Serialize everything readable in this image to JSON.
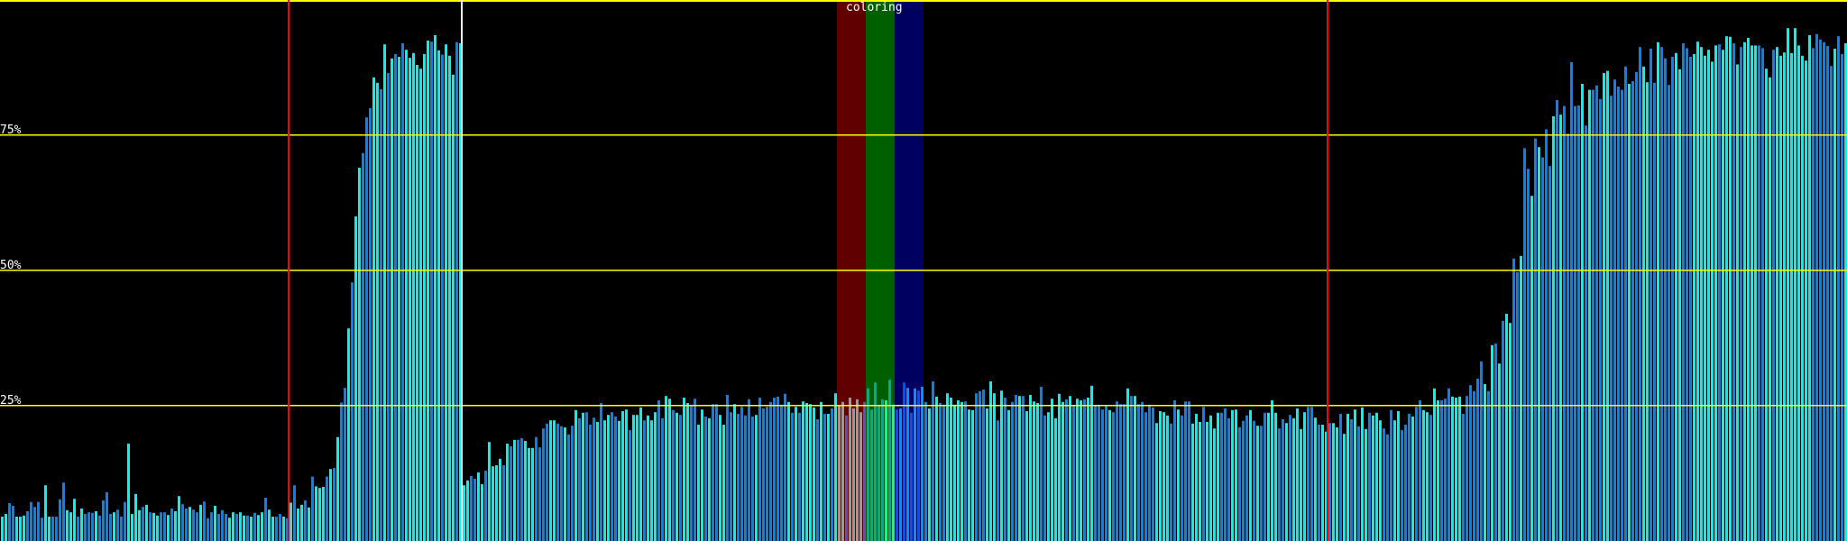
{
  "chart_data": {
    "type": "bar",
    "ylim": [
      0,
      100
    ],
    "y_ticks": [
      {
        "value": 25,
        "label": "25%"
      },
      {
        "value": 50,
        "label": "50%"
      },
      {
        "value": 75,
        "label": "75%"
      }
    ],
    "grid": true,
    "colors": {
      "background": "#000000",
      "gridline": "#ffff00",
      "bar_primary": "#00f4ec",
      "bar_secondary": "#0880f0",
      "marker_red": "#ff0000",
      "marker_white": "#ffffff",
      "band_red": "#600000",
      "band_green": "#006000",
      "band_blue": "#000060"
    },
    "markers": [
      {
        "bar_index": 80,
        "color": "red"
      },
      {
        "bar_index": 128,
        "color": "white"
      },
      {
        "bar_index": 368,
        "color": "red"
      }
    ],
    "band": {
      "label": "coloring",
      "segments": [
        {
          "color": "red",
          "start_bar": 232,
          "end_bar": 240
        },
        {
          "color": "green",
          "start_bar": 240,
          "end_bar": 248
        },
        {
          "color": "blue",
          "start_bar": 248,
          "end_bar": 256
        }
      ]
    },
    "values": [
      4.5,
      5,
      7,
      6.5,
      4.5,
      4.5,
      4.7,
      5.5,
      7.2,
      6.3,
      7.2,
      4.3,
      10.3,
      4.5,
      4.5,
      4.5,
      7.7,
      10.8,
      5.7,
      5.3,
      7.8,
      4.5,
      6,
      5,
      5.3,
      5.2,
      5.5,
      4.7,
      7.5,
      9,
      5,
      5.3,
      5.8,
      4.5,
      7.2,
      18,
      5,
      8.7,
      5.7,
      6.3,
      6.7,
      5.3,
      5.2,
      4.7,
      5.3,
      5.3,
      4.8,
      6,
      5.5,
      8.3,
      6.8,
      6,
      6.3,
      5.8,
      5.3,
      6.7,
      7.3,
      4.2,
      5.3,
      6.5,
      5,
      5.7,
      5,
      4.3,
      5.3,
      5,
      5.3,
      4.7,
      4.7,
      4.5,
      5.2,
      4.8,
      5.3,
      8,
      5.8,
      4.5,
      4.5,
      5,
      4.5,
      4.2,
      7.1,
      10.3,
      6,
      6.7,
      7.5,
      6.2,
      11.9,
      10.1,
      9.8,
      10,
      11.9,
      13.3,
      13.5,
      19.2,
      25.6,
      28.3,
      39.3,
      47.8,
      60,
      69,
      71.7,
      78.3,
      80,
      85.7,
      84.7,
      83.5,
      91.8,
      86.5,
      89.2,
      90,
      89.5,
      92,
      90.8,
      89.3,
      90.2,
      88,
      87.3,
      90,
      92.5,
      92.3,
      93.5,
      90.7,
      89.9,
      91.8,
      89.7,
      86.2,
      92.2,
      92,
      10.3,
      11.2,
      12,
      11.5,
      12.7,
      10.5,
      13,
      18.3,
      13.8,
      14,
      15.2,
      14,
      18,
      17.5,
      18.7,
      18.7,
      19,
      18.5,
      17.2,
      17.2,
      19.2,
      17.3,
      20.8,
      21.7,
      22.3,
      22.3,
      21.7,
      21.2,
      21,
      19.7,
      21.3,
      24.2,
      22.7,
      23.7,
      23.8,
      21.5,
      22.8,
      22,
      25.5,
      22.3,
      23.3,
      23.8,
      23,
      22.2,
      24,
      24.3,
      20.5,
      23.3,
      23.3,
      24.7,
      22.3,
      23.2,
      22.3,
      23.8,
      26,
      22.7,
      26.8,
      26.3,
      24.2,
      23.7,
      23.3,
      26.5,
      25.5,
      25.2,
      26.3,
      21.5,
      24.3,
      23,
      22.7,
      25.3,
      25.3,
      23.3,
      21.5,
      27,
      23.8,
      25.3,
      23.5,
      24.8,
      23.2,
      26.2,
      23,
      23.3,
      26.5,
      24.5,
      24.8,
      25.7,
      26.5,
      26.7,
      25.2,
      27.2,
      25.7,
      23.7,
      24.8,
      23.7,
      25.8,
      25.5,
      25.3,
      24.7,
      22.5,
      25.7,
      23.5,
      23.5,
      24.5,
      27.3,
      25,
      25.7,
      23.2,
      26.5,
      24.5,
      26.2,
      23.8,
      25.7,
      28.2,
      24.3,
      29.3,
      25,
      26.2,
      26,
      29.8,
      25.2,
      24.3,
      24.5,
      29.3,
      28.3,
      23.7,
      28.2,
      27.8,
      28.5,
      25.7,
      24.5,
      29.5,
      26.7,
      25.5,
      25.2,
      27.3,
      26.5,
      25.2,
      26,
      25.7,
      25.8,
      24.3,
      24.2,
      27.3,
      27.7,
      28,
      24.5,
      29.5,
      27.3,
      22.3,
      27.8,
      26.5,
      24.2,
      25.7,
      27,
      26.8,
      26.8,
      24,
      27,
      25.8,
      25.5,
      28.5,
      23.2,
      23.8,
      26.3,
      22.7,
      27.2,
      25.7,
      26.2,
      26.8,
      25,
      26.3,
      26,
      26.2,
      26.5,
      28.7,
      25,
      25.2,
      24.3,
      25,
      24.2,
      23.8,
      25.8,
      25.3,
      25.3,
      28.2,
      26.8,
      26.8,
      25.3,
      25.7,
      23.8,
      25.2,
      24.7,
      21.8,
      24,
      23.8,
      23.2,
      21.7,
      26,
      24.3,
      23.2,
      25.8,
      25.8,
      21.7,
      23.5,
      22,
      24.8,
      22,
      23.2,
      20.8,
      23.7,
      23.7,
      24.5,
      22.7,
      24.2,
      24.3,
      21,
      22.2,
      23.2,
      24.2,
      22.2,
      21.3,
      21.3,
      23.7,
      23.7,
      26,
      23.7,
      20.8,
      22.5,
      21.8,
      23.3,
      22.7,
      24.5,
      20.7,
      23.8,
      24.8,
      24.8,
      22.8,
      21.5,
      21.5,
      20.2,
      21.8,
      21.8,
      21,
      23.5,
      19.8,
      23.5,
      22.5,
      24.3,
      21.2,
      24.7,
      20.7,
      23.7,
      23.2,
      23.7,
      22.3,
      20.8,
      19.7,
      24.2,
      22.3,
      24,
      20.5,
      21.5,
      23.5,
      23,
      24.8,
      26,
      24.2,
      23.8,
      23.3,
      28.2,
      26,
      26,
      26.3,
      28.2,
      26.7,
      26.5,
      26.7,
      23.5,
      26.8,
      28.8,
      27.7,
      30,
      33.2,
      29,
      27.7,
      36.2,
      36.5,
      32.8,
      40.7,
      42,
      40.3,
      52.2,
      49.7,
      52.7,
      72.6,
      68.8,
      63.8,
      74.4,
      72.8,
      70.9,
      76.1,
      69.3,
      78.5,
      81.5,
      78.8,
      80.4,
      75.3,
      88.5,
      80.4,
      80.5,
      84.5,
      76.8,
      83.4,
      83.4,
      84.2,
      81.7,
      86.5,
      86.9,
      82.3,
      85.3,
      84,
      83.4,
      87.7,
      84.5,
      85,
      86.7,
      91.3,
      87.7,
      84.8,
      91,
      84.7,
      92.2,
      91.3,
      89.2,
      84.3,
      89.5,
      90.2,
      87.2,
      92,
      91.1,
      89.5,
      90,
      92.3,
      91.3,
      89.7,
      90.8,
      88.6,
      91.6,
      91.8,
      90.8,
      93.3,
      93.2,
      92,
      88.1,
      91.3,
      92.2,
      93,
      91.6,
      91.6,
      91.6,
      91.1,
      87.3,
      85.7,
      90.8,
      91.3,
      89.7,
      90.3,
      94.8,
      90.2,
      94.8,
      91.6,
      89.7,
      88.8,
      93.5,
      91.1,
      93.7,
      92.7,
      92.2,
      91.5,
      87.8,
      91,
      93.3,
      90,
      92
    ]
  }
}
